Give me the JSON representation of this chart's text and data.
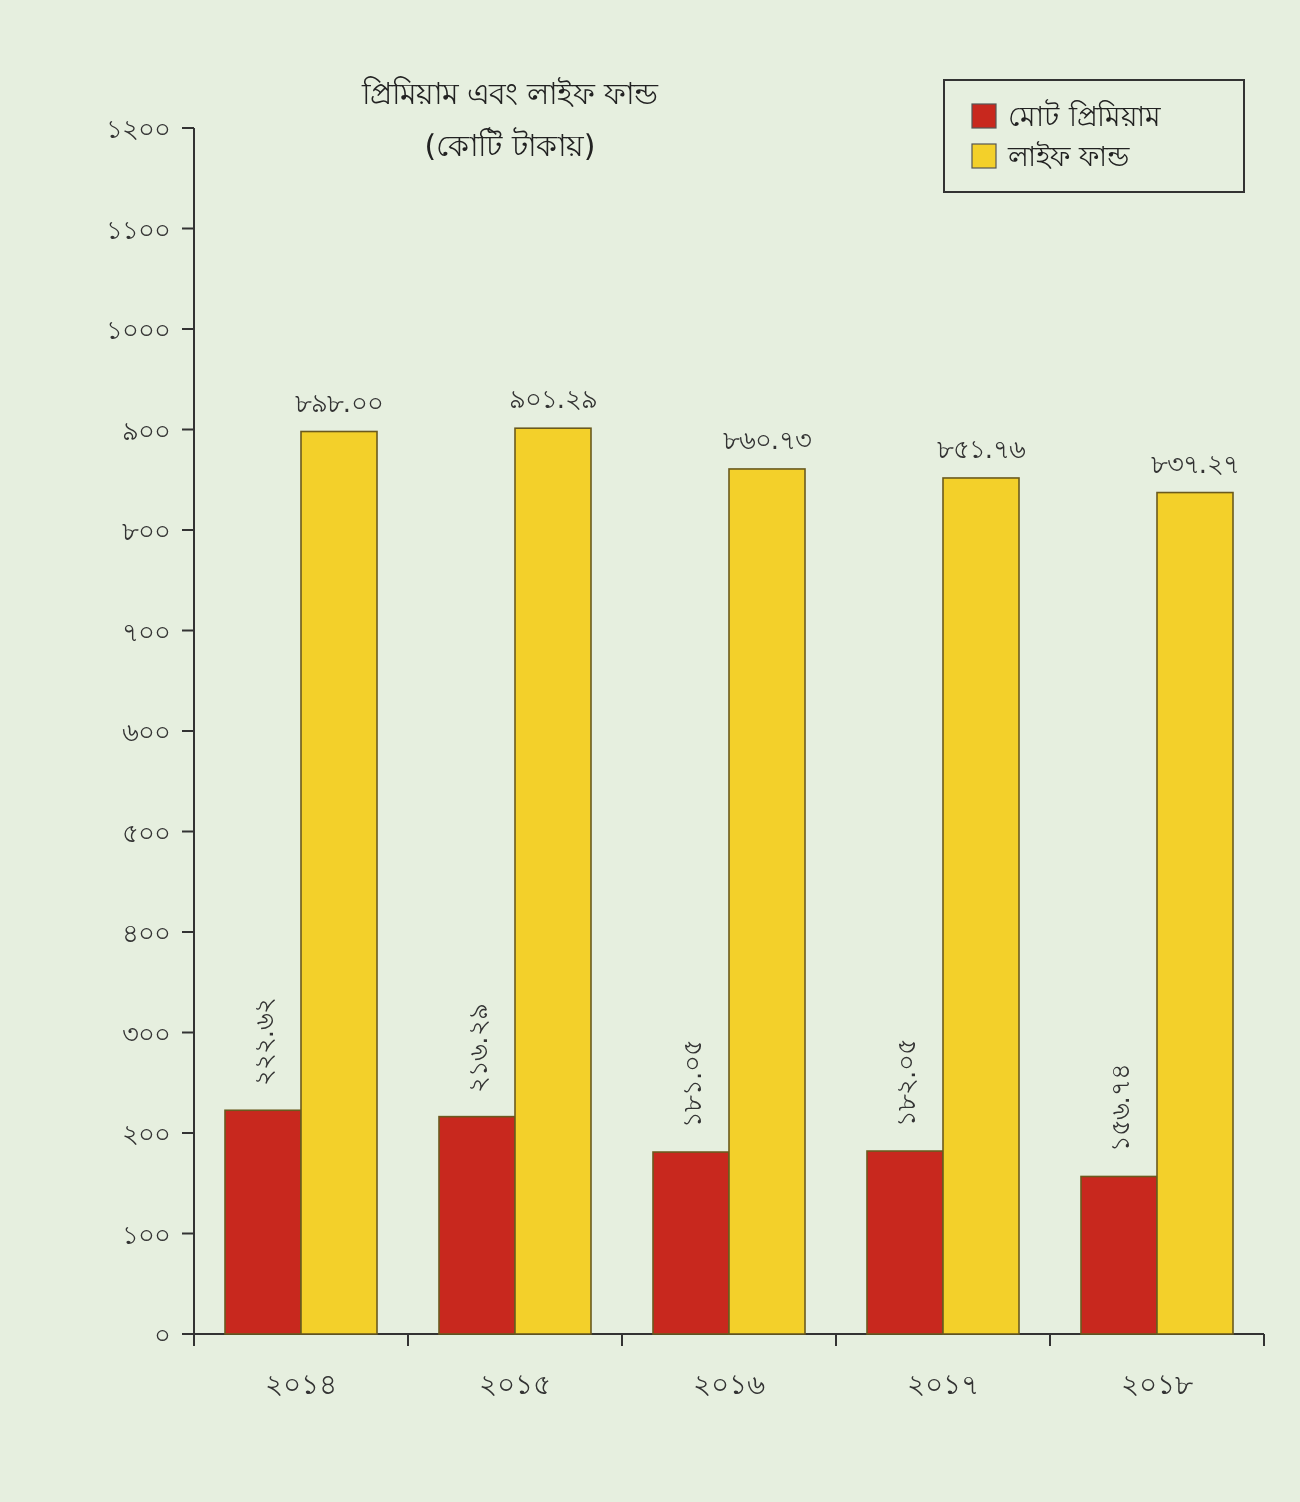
{
  "chart_data": {
    "type": "bar",
    "title": "প্রিমিয়াম এবং লাইফ ফান্ড",
    "subtitle": "(কোটি টাকায়)",
    "categories": [
      "২০১৪",
      "২০১৫",
      "২০১৬",
      "২০১৭",
      "২০১৮"
    ],
    "series": [
      {
        "name": "মোট প্রিমিয়াম",
        "color": "#c8281e",
        "values": [
          222.62,
          216.29,
          181.05,
          182.05,
          156.74
        ],
        "value_labels": [
          "২২২.৬২",
          "২১৬.২৯",
          "১৮১.০৫",
          "১৮২.০৫",
          "১৫৬.৭৪"
        ]
      },
      {
        "name": "লাইফ ফান্ড",
        "color": "#f3d02a",
        "values": [
          898.0,
          901.29,
          860.73,
          851.76,
          837.27
        ],
        "value_labels": [
          "৮৯৮.০০",
          "৯০১.২৯",
          "৮৬০.৭৩",
          "৮৫১.৭৬",
          "৮৩৭.২৭"
        ]
      }
    ],
    "ylim": [
      0,
      1200
    ],
    "yticks": [
      {
        "value": 0,
        "label": "০"
      },
      {
        "value": 100,
        "label": "১০০"
      },
      {
        "value": 200,
        "label": "২০০"
      },
      {
        "value": 300,
        "label": "৩০০"
      },
      {
        "value": 400,
        "label": "৪০০"
      },
      {
        "value": 500,
        "label": "৫০০"
      },
      {
        "value": 600,
        "label": "৬০০"
      },
      {
        "value": 700,
        "label": "৭০০"
      },
      {
        "value": 800,
        "label": "৮০০"
      },
      {
        "value": 900,
        "label": "৯০০"
      },
      {
        "value": 1000,
        "label": "১০০০"
      },
      {
        "value": 1100,
        "label": "১১০০"
      },
      {
        "value": 1200,
        "label": "১২০০"
      }
    ],
    "legend": "top right"
  }
}
